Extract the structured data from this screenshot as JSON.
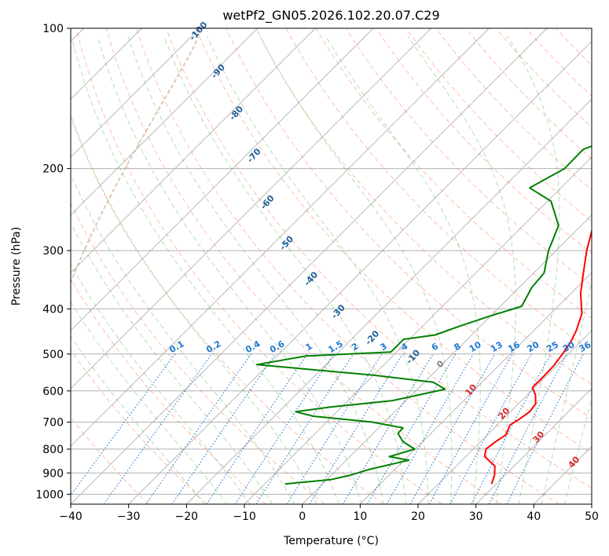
{
  "chart_data": {
    "type": "line",
    "title": "wetPf2_GN05.2026.102.20.07.C29",
    "xlabel": "Temperature (°C)",
    "ylabel": "Pressure (hPa)",
    "xlim": [
      -40,
      50
    ],
    "ylim": [
      1050,
      100
    ],
    "y_scale": "log",
    "x_ticks": [
      -40,
      -30,
      -20,
      -10,
      0,
      10,
      20,
      30,
      40,
      50
    ],
    "x_tick_labels": [
      "−40",
      "−30",
      "−20",
      "−10",
      "0",
      "10",
      "20",
      "30",
      "40",
      "50"
    ],
    "y_ticks": [
      100,
      200,
      300,
      400,
      500,
      600,
      700,
      800,
      900,
      1000
    ],
    "y_tick_labels": [
      "100",
      "200",
      "300",
      "400",
      "500",
      "600",
      "700",
      "800",
      "900",
      "1000"
    ],
    "grid": true,
    "series": [
      {
        "key": "temperature",
        "color": "#ff0000",
        "points": [
          [
            29.2,
            950
          ],
          [
            28.2,
            910
          ],
          [
            26.7,
            870
          ],
          [
            23.3,
            830
          ],
          [
            22.2,
            800
          ],
          [
            22.6,
            770
          ],
          [
            23.2,
            745
          ],
          [
            22.7,
            728
          ],
          [
            22.2,
            710
          ],
          [
            22.8,
            690
          ],
          [
            23.3,
            665
          ],
          [
            23.0,
            640
          ],
          [
            21.4,
            612
          ],
          [
            19.6,
            590
          ],
          [
            19.6,
            560
          ],
          [
            19.5,
            530
          ],
          [
            19.0,
            500
          ],
          [
            18.3,
            470
          ],
          [
            17.3,
            445
          ],
          [
            15.4,
            410
          ],
          [
            11.6,
            370
          ],
          [
            8.6,
            335
          ],
          [
            5.3,
            300
          ],
          [
            1.8,
            262
          ],
          [
            0.3,
            240
          ],
          [
            0.2,
            225
          ],
          [
            1.4,
            213
          ],
          [
            2.2,
            205
          ],
          [
            2.1,
            192
          ],
          [
            1.8,
            178
          ],
          [
            1.3,
            162
          ],
          [
            0.6,
            150
          ],
          [
            -0.4,
            135
          ],
          [
            -1.6,
            122
          ],
          [
            -2.1,
            112
          ],
          [
            -0.8,
            105
          ],
          [
            2.0,
            100
          ]
        ]
      },
      {
        "key": "dewpoint",
        "color": "#008000",
        "points": [
          [
            -6.5,
            950
          ],
          [
            0.7,
            930
          ],
          [
            3.3,
            910
          ],
          [
            5.5,
            885
          ],
          [
            10.8,
            845
          ],
          [
            6.8,
            830
          ],
          [
            9.9,
            800
          ],
          [
            6.5,
            770
          ],
          [
            4.3,
            740
          ],
          [
            4.2,
            720
          ],
          [
            -2.1,
            700
          ],
          [
            -13.3,
            680
          ],
          [
            -17.1,
            665
          ],
          [
            -12.0,
            650
          ],
          [
            -2.4,
            630
          ],
          [
            4.8,
            595
          ],
          [
            1.6,
            575
          ],
          [
            -10.0,
            555
          ],
          [
            -32.0,
            527
          ],
          [
            -25.0,
            505
          ],
          [
            -11.0,
            495
          ],
          [
            -11.0,
            480
          ],
          [
            -11.0,
            465
          ],
          [
            -6.3,
            455
          ],
          [
            -3.5,
            435
          ],
          [
            -0.2,
            415
          ],
          [
            3.7,
            395
          ],
          [
            2.2,
            360
          ],
          [
            1.8,
            335
          ],
          [
            -1.3,
            300
          ],
          [
            -3.9,
            265
          ],
          [
            -9.4,
            235
          ],
          [
            -15.4,
            220
          ],
          [
            -12.7,
            200
          ],
          [
            -12.8,
            182
          ],
          [
            -8.4,
            168
          ],
          [
            -6.2,
            152
          ],
          [
            -5.1,
            132
          ],
          [
            -6.3,
            120
          ],
          [
            -6.4,
            110
          ],
          [
            -6.0,
            100
          ]
        ]
      }
    ],
    "mixing_ratio_labels": [
      "0.1",
      "0.2",
      "0.4",
      "0.6",
      "1",
      "1.5",
      "2",
      "3",
      "4",
      "6",
      "8",
      "10",
      "13",
      "16",
      "20",
      "25",
      "30",
      "36"
    ],
    "dry_adiabat_labels": [
      "-100",
      "-90",
      "-80",
      "-70",
      "-60",
      "-50",
      "-40",
      "-30",
      "-20",
      "-10"
    ],
    "moist_adiabat_labels": [
      "0",
      "10",
      "20",
      "30",
      "40"
    ],
    "colors": {
      "temperature": "#ff0000",
      "dewpoint": "#008000",
      "isotherm": "#b0b0b0",
      "dry_adiabat": "#ff6e3c",
      "moist_adiabat": "#4ca64c",
      "mixing_ratio": "#1f77d4",
      "dry_label": "#1f5f9a",
      "moist_label": "#d62728",
      "lcl_arc": "#c8a080"
    }
  }
}
